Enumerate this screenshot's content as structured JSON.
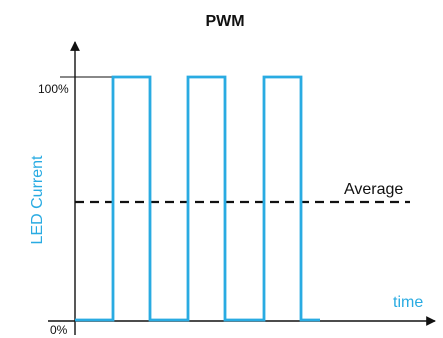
{
  "title": "PWM",
  "y_axis_label": "LED Current",
  "x_axis_label": "time",
  "tick_labels": {
    "top": "100%",
    "bottom": "0%"
  },
  "average_label": "Average",
  "colors": {
    "signal": "#29abe2",
    "axis": "#111111",
    "average_line": "#111111"
  },
  "chart_data": {
    "type": "line",
    "title": "PWM",
    "xlabel": "time",
    "ylabel": "LED Current",
    "ylim": [
      0,
      100
    ],
    "y_ticks": [
      "0%",
      "100%"
    ],
    "series": [
      {
        "x": [
          0,
          1,
          1,
          2,
          2,
          3,
          3,
          4,
          4,
          5,
          5,
          6
        ],
        "values": [
          0,
          0,
          100,
          100,
          0,
          0,
          100,
          100,
          0,
          0,
          100,
          100
        ]
      }
    ],
    "average": {
      "label": "Average",
      "value": 50,
      "style": "dashed"
    },
    "grid": false,
    "legend": "none"
  }
}
